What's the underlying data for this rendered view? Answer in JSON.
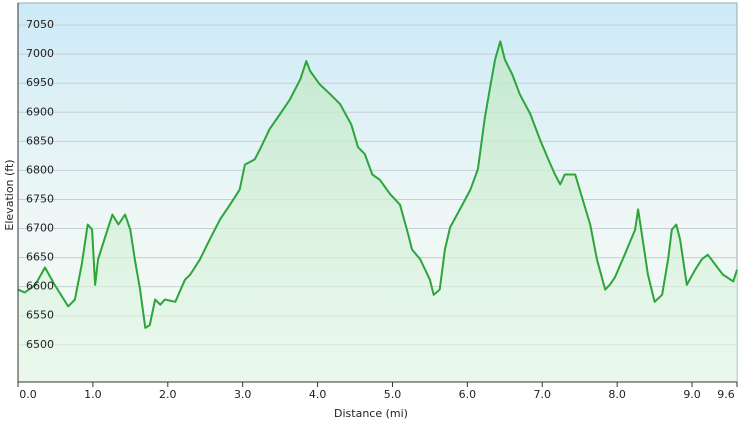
{
  "chart_data": {
    "type": "area",
    "x_label": "Distance  (mi)",
    "y_label": "Elevation (ft)",
    "color": "#2ca53a",
    "grid": true,
    "xlim": [
      0,
      9.6
    ],
    "ylim": [
      6436,
      7088
    ],
    "xticks": [
      {
        "value": 0,
        "label": "0.0"
      },
      {
        "value": 1,
        "label": "1.0"
      },
      {
        "value": 2,
        "label": "2.0"
      },
      {
        "value": 3,
        "label": "3.0"
      },
      {
        "value": 4,
        "label": "4.0"
      },
      {
        "value": 5,
        "label": "5.0"
      },
      {
        "value": 6,
        "label": "6.0"
      },
      {
        "value": 7,
        "label": "7.0"
      },
      {
        "value": 8,
        "label": "8.0"
      },
      {
        "value": 9,
        "label": "9.0"
      },
      9.6
    ],
    "yticks": [
      6500,
      6550,
      6600,
      6650,
      6700,
      6750,
      6800,
      6850,
      6900,
      6950,
      7000,
      7050
    ],
    "x": [
      0.0,
      0.09,
      0.23,
      0.36,
      0.49,
      0.67,
      0.76,
      0.85,
      0.93,
      0.99,
      1.03,
      1.07,
      1.16,
      1.26,
      1.34,
      1.43,
      1.5,
      1.56,
      1.63,
      1.7,
      1.76,
      1.83,
      1.9,
      1.96,
      2.1,
      2.23,
      2.3,
      2.43,
      2.56,
      2.7,
      2.83,
      2.96,
      3.03,
      3.16,
      3.23,
      3.36,
      3.5,
      3.63,
      3.77,
      3.85,
      3.9,
      4.03,
      4.17,
      4.3,
      4.45,
      4.54,
      4.63,
      4.73,
      4.83,
      4.97,
      5.1,
      5.21,
      5.26,
      5.37,
      5.5,
      5.55,
      5.63,
      5.7,
      5.77,
      5.9,
      6.04,
      6.14,
      6.23,
      6.3,
      6.37,
      6.44,
      6.5,
      6.6,
      6.7,
      6.84,
      6.97,
      7.08,
      7.17,
      7.24,
      7.3,
      7.44,
      7.5,
      7.64,
      7.73,
      7.84,
      7.9,
      7.97,
      8.1,
      8.24,
      8.28,
      8.33,
      8.41,
      8.5,
      8.6,
      8.68,
      8.73,
      8.79,
      8.84,
      8.93,
      9.04,
      9.13,
      9.21,
      9.31,
      9.41,
      9.55,
      9.6
    ],
    "y": [
      6595,
      6590,
      6603,
      6633,
      6603,
      6566,
      6578,
      6638,
      6707,
      6698,
      6603,
      6647,
      6684,
      6724,
      6707,
      6724,
      6698,
      6647,
      6595,
      6529,
      6534,
      6578,
      6569,
      6578,
      6574,
      6612,
      6621,
      6647,
      6681,
      6716,
      6741,
      6767,
      6810,
      6819,
      6836,
      6871,
      6897,
      6922,
      6957,
      6988,
      6971,
      6948,
      6931,
      6914,
      6879,
      6840,
      6828,
      6793,
      6784,
      6759,
      6741,
      6690,
      6664,
      6647,
      6612,
      6586,
      6595,
      6664,
      6702,
      6733,
      6767,
      6802,
      6888,
      6940,
      6991,
      7022,
      6991,
      6965,
      6931,
      6897,
      6853,
      6819,
      6793,
      6776,
      6793,
      6793,
      6767,
      6707,
      6647,
      6595,
      6603,
      6616,
      6655,
      6698,
      6733,
      6690,
      6621,
      6574,
      6586,
      6647,
      6698,
      6707,
      6681,
      6603,
      6629,
      6647,
      6655,
      6638,
      6621,
      6609,
      6629
    ]
  }
}
